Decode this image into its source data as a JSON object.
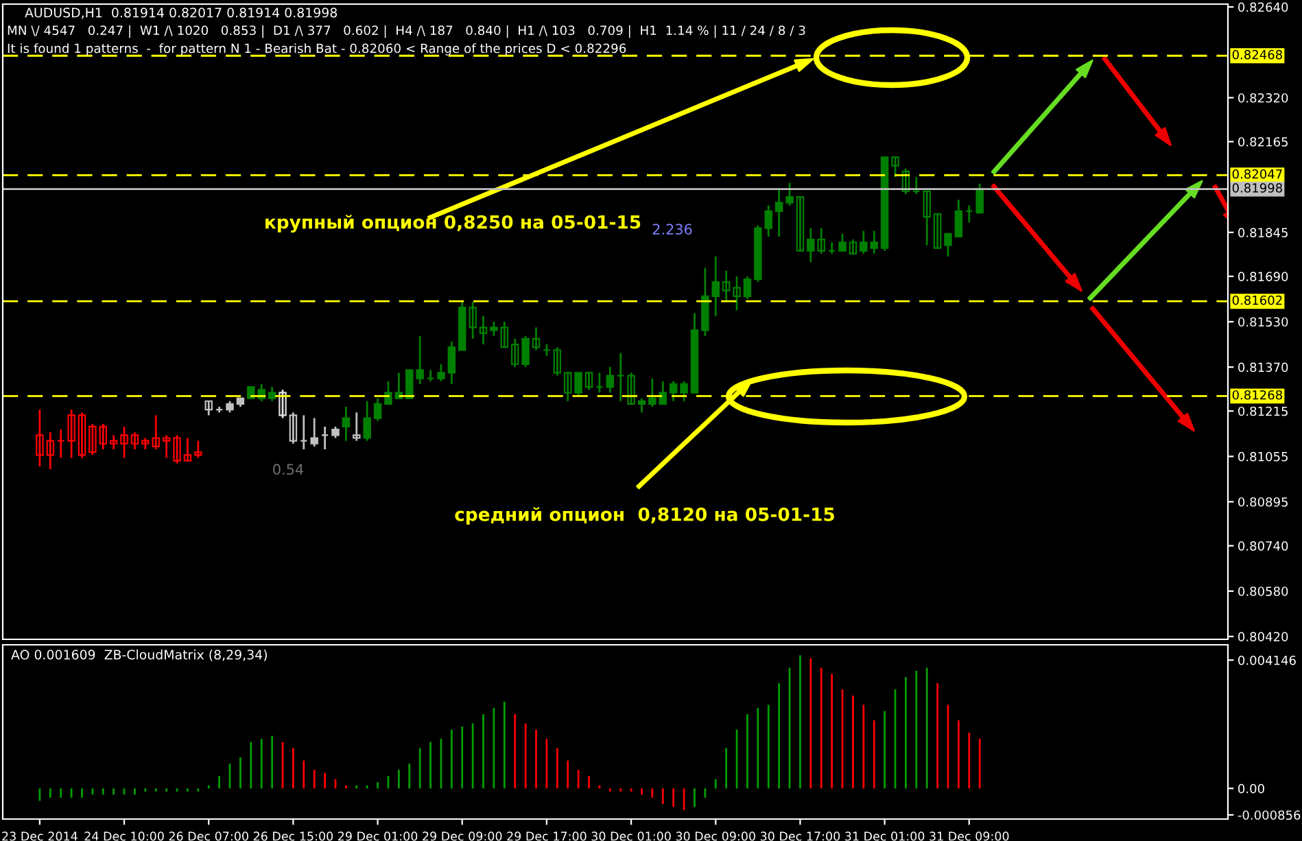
{
  "chart_data": [
    {
      "type": "candlestick",
      "title": "AUDUSD,H1  0.81914 0.82017 0.81914 0.81998",
      "subtitle": "MN \\/ 4547   0.247 |  W1 /\\ 1020   0.853 |  D1 /\\ 377   0.602 |  H4 /\\ 187   0.840 |  H1 /\\ 103   0.709 |  H1  1.14 % | 11 / 24 / 8 / 3",
      "annotations": [
        "It is found 1 patterns  -  for pattern N 1 - Bearish Bat - 0.82060 < Range of the prices D < 0.82296",
        "крупный опцион 0,8250 на 05-01-15",
        "средний опцион  0,8120 на 05-01-15",
        "2.236",
        "0.54"
      ],
      "categories": [
        null,
        null,
        null,
        null,
        null,
        null,
        null,
        null,
        null,
        null,
        null,
        null,
        null,
        null,
        null,
        null,
        null,
        null,
        null,
        null,
        null,
        null,
        null,
        null,
        null,
        null,
        null,
        null,
        null,
        null,
        null,
        null,
        null,
        null,
        null,
        null,
        null,
        null,
        null,
        null,
        null,
        null,
        null,
        null,
        null,
        null,
        null,
        null,
        null,
        null,
        null,
        null,
        null,
        null,
        null,
        null,
        null,
        null,
        null,
        null,
        null,
        null,
        null,
        null,
        null,
        null,
        null,
        null,
        null,
        null,
        null,
        null,
        null,
        null,
        null,
        null,
        null,
        null,
        null,
        null,
        null,
        null,
        null,
        null,
        null,
        null,
        null,
        null,
        null,
        null,
        null,
        null,
        null,
        null,
        null,
        null,
        null,
        null,
        null,
        null,
        null,
        null,
        null,
        null,
        null,
        null,
        null,
        null,
        null,
        null,
        null,
        null,
        null
      ],
      "ohlc": [
        [
          0.8113,
          0.8122,
          0.8102,
          0.8106
        ],
        [
          0.8111,
          0.8114,
          0.8101,
          0.8106
        ],
        [
          0.8111,
          0.8115,
          0.8105,
          0.8111
        ],
        [
          0.812,
          0.8122,
          0.8105,
          0.8111
        ],
        [
          0.812,
          0.8121,
          0.8105,
          0.8106
        ],
        [
          0.8116,
          0.8117,
          0.8106,
          0.8107
        ],
        [
          0.8116,
          0.8117,
          0.8108,
          0.811
        ],
        [
          0.8111,
          0.8113,
          0.8108,
          0.811
        ],
        [
          0.8113,
          0.8116,
          0.8105,
          0.811
        ],
        [
          0.8113,
          0.8114,
          0.8108,
          0.811
        ],
        [
          0.8111,
          0.8112,
          0.8108,
          0.811
        ],
        [
          0.8112,
          0.812,
          0.8108,
          0.8109
        ],
        [
          0.8112,
          0.8113,
          0.8105,
          0.8111
        ],
        [
          0.8112,
          0.8113,
          0.8103,
          0.8104
        ],
        [
          0.8106,
          0.8112,
          0.8104,
          0.8104
        ],
        [
          0.8107,
          0.8111,
          0.8105,
          0.8106
        ],
        [
          0.8125,
          0.8125,
          0.812,
          0.8122
        ],
        [
          0.8122,
          0.8123,
          0.8121,
          0.8122
        ],
        [
          0.8122,
          0.8125,
          0.8121,
          0.8124
        ],
        [
          0.8124,
          0.8126,
          0.8123,
          0.8126
        ],
        [
          0.8126,
          0.813,
          0.8126,
          0.813
        ],
        [
          0.8126,
          0.8131,
          0.8125,
          0.8129
        ],
        [
          0.8126,
          0.813,
          0.8125,
          0.8128
        ],
        [
          0.8128,
          0.8129,
          0.8119,
          0.812
        ],
        [
          0.812,
          0.8121,
          0.811,
          0.8111
        ],
        [
          0.8111,
          0.812,
          0.8108,
          0.8111
        ],
        [
          0.811,
          0.8119,
          0.8109,
          0.8112
        ],
        [
          0.8113,
          0.8116,
          0.8108,
          0.8113
        ],
        [
          0.8113,
          0.8116,
          0.8112,
          0.8115
        ],
        [
          0.8116,
          0.8123,
          0.8111,
          0.8119
        ],
        [
          0.8113,
          0.8121,
          0.8111,
          0.8112
        ],
        [
          0.8112,
          0.8125,
          0.8111,
          0.8119
        ],
        [
          0.8119,
          0.8126,
          0.8118,
          0.8124
        ],
        [
          0.8124,
          0.8132,
          0.8124,
          0.8128
        ],
        [
          0.8126,
          0.8135,
          0.8126,
          0.8128
        ],
        [
          0.8126,
          0.8136,
          0.8126,
          0.8136
        ],
        [
          0.8133,
          0.8148,
          0.8131,
          0.8136
        ],
        [
          0.8133,
          0.8136,
          0.8132,
          0.8133
        ],
        [
          0.8133,
          0.8138,
          0.8132,
          0.8135
        ],
        [
          0.8135,
          0.8146,
          0.8131,
          0.8144
        ],
        [
          0.8143,
          0.816,
          0.8143,
          0.8158
        ],
        [
          0.8158,
          0.816,
          0.8147,
          0.8151
        ],
        [
          0.8151,
          0.8155,
          0.8145,
          0.8149
        ],
        [
          0.815,
          0.8153,
          0.8148,
          0.8151
        ],
        [
          0.8151,
          0.8153,
          0.8144,
          0.8144
        ],
        [
          0.8145,
          0.8147,
          0.8137,
          0.8138
        ],
        [
          0.8138,
          0.8148,
          0.8137,
          0.8147
        ],
        [
          0.8147,
          0.8151,
          0.8143,
          0.8144
        ],
        [
          0.8143,
          0.8145,
          0.8141,
          0.8143
        ],
        [
          0.8143,
          0.8144,
          0.8134,
          0.8135
        ],
        [
          0.8135,
          0.8135,
          0.8125,
          0.8128
        ],
        [
          0.8128,
          0.8135,
          0.8127,
          0.8135
        ],
        [
          0.8135,
          0.8135,
          0.8129,
          0.813
        ],
        [
          0.813,
          0.8135,
          0.8128,
          0.813
        ],
        [
          0.813,
          0.8137,
          0.8128,
          0.8134
        ],
        [
          0.8134,
          0.8142,
          0.8125,
          0.8134
        ],
        [
          0.8134,
          0.8135,
          0.8124,
          0.8124
        ],
        [
          0.8124,
          0.8126,
          0.8121,
          0.8125
        ],
        [
          0.8124,
          0.8133,
          0.8123,
          0.8126
        ],
        [
          0.8124,
          0.8132,
          0.8124,
          0.8128
        ],
        [
          0.8128,
          0.8132,
          0.8125,
          0.8131
        ],
        [
          0.8128,
          0.8132,
          0.8125,
          0.8131
        ],
        [
          0.8128,
          0.8156,
          0.8128,
          0.815
        ],
        [
          0.815,
          0.8172,
          0.8148,
          0.8162
        ],
        [
          0.8162,
          0.8176,
          0.8155,
          0.8167
        ],
        [
          0.8167,
          0.8171,
          0.816,
          0.8164
        ],
        [
          0.8165,
          0.8169,
          0.8157,
          0.8162
        ],
        [
          0.8162,
          0.8169,
          0.8161,
          0.8168
        ],
        [
          0.8168,
          0.8187,
          0.8167,
          0.8186
        ],
        [
          0.8186,
          0.8194,
          0.8183,
          0.8192
        ],
        [
          0.8192,
          0.82,
          0.8183,
          0.8195
        ],
        [
          0.8195,
          0.8202,
          0.8194,
          0.8197
        ],
        [
          0.8197,
          0.8197,
          0.8178,
          0.8178
        ],
        [
          0.8178,
          0.8186,
          0.8174,
          0.8182
        ],
        [
          0.8182,
          0.8186,
          0.8177,
          0.8178
        ],
        [
          0.8178,
          0.8181,
          0.8177,
          0.8178
        ],
        [
          0.8178,
          0.8184,
          0.8178,
          0.8181
        ],
        [
          0.8181,
          0.8182,
          0.8177,
          0.8177
        ],
        [
          0.8178,
          0.8185,
          0.8177,
          0.8181
        ],
        [
          0.8179,
          0.8185,
          0.8177,
          0.8181
        ],
        [
          0.8179,
          0.8211,
          0.8178,
          0.8211
        ],
        [
          0.8211,
          0.8211,
          0.8204,
          0.8208
        ],
        [
          0.8206,
          0.8207,
          0.8198,
          0.8199
        ],
        [
          0.8199,
          0.8204,
          0.8198,
          0.8199
        ],
        [
          0.8199,
          0.8199,
          0.818,
          0.819
        ],
        [
          0.8191,
          0.8191,
          0.8179,
          0.8179
        ],
        [
          0.818,
          0.8184,
          0.8176,
          0.8184
        ],
        [
          0.8183,
          0.8196,
          0.8183,
          0.8192
        ],
        [
          0.8192,
          0.8194,
          0.8188,
          0.8192
        ],
        [
          0.81914,
          0.82017,
          0.81914,
          0.81998
        ],
        null,
        null,
        null,
        null,
        null,
        null,
        null,
        null,
        null,
        null,
        null,
        null,
        null,
        null,
        null,
        null,
        null,
        null,
        null,
        null,
        null,
        null,
        null
      ],
      "colors": [
        "#ff0000",
        "#ff0000",
        "#ff0000",
        "#ff0000",
        "#ff0000",
        "#ff0000",
        "#ff0000",
        "#ff0000",
        "#ff0000",
        "#ff0000",
        "#ff0000",
        "#ff0000",
        "#ff0000",
        "#ff0000",
        "#ff0000",
        "#ff0000",
        "#c0c0c0",
        "#c0c0c0",
        "#c0c0c0",
        "#c0c0c0",
        "#008000",
        "#008000",
        "#008000",
        "#e0e0e0",
        "#c0c0c0",
        "#c0c0c0",
        "#c0c0c0",
        "#c0c0c0",
        "#c0c0c0",
        "#008000",
        "#c0c0c0",
        "#008000",
        "#008000",
        "#008000",
        "#008000",
        "#008000",
        "#008000",
        "#008000",
        "#008000",
        "#008000",
        "#008000",
        "#008000",
        "#008000",
        "#008000",
        "#008000",
        "#008000",
        "#008000",
        "#008000",
        "#008000",
        "#008000",
        "#008000",
        "#008000",
        "#008000",
        "#008000",
        "#008000",
        "#008000",
        "#008000",
        "#008000",
        "#008000",
        "#008000",
        "#008000",
        "#008000",
        "#008000",
        "#008000",
        "#008000",
        "#008000",
        "#008000",
        "#008000",
        "#008000",
        "#008000",
        "#008000",
        "#008000",
        "#008000",
        "#008000",
        "#008000",
        "#008000",
        "#008000",
        "#008000",
        "#008000",
        "#008000",
        "#008000",
        "#008000",
        "#008000",
        "#008000",
        "#008000",
        "#008000",
        "#008000",
        "#008000",
        "#008000",
        "#008000",
        null,
        null,
        null,
        null,
        null,
        null,
        null,
        null,
        null,
        null,
        null,
        null,
        null,
        null,
        null,
        null,
        null,
        null,
        null,
        null,
        null,
        null,
        null
      ],
      "ylim": [
        0.8041,
        0.8265
      ],
      "yticks": [
        {
          "value": 0.8264,
          "label": "0.82640"
        },
        {
          "value": 0.8232,
          "label": "0.82320"
        },
        {
          "value": 0.82165,
          "label": "0.82165"
        },
        {
          "value": 0.81845,
          "label": "0.81845"
        },
        {
          "value": 0.8169,
          "label": "0.81690"
        },
        {
          "value": 0.8153,
          "label": "0.81530"
        },
        {
          "value": 0.8137,
          "label": "0.81370"
        },
        {
          "value": 0.81215,
          "label": "0.81215"
        },
        {
          "value": 0.81055,
          "label": "0.81055"
        },
        {
          "value": 0.80895,
          "label": "0.80895"
        },
        {
          "value": 0.8074,
          "label": "0.80740"
        },
        {
          "value": 0.8058,
          "label": "0.80580"
        },
        {
          "value": 0.8042,
          "label": "0.80420"
        }
      ],
      "ref_lines": [
        {
          "axis": "y",
          "value": 0.82468,
          "label": "0.82468",
          "color": "#ffff00",
          "line_style": "dashed"
        },
        {
          "axis": "y",
          "value": 0.82047,
          "label": "0.82047",
          "color": "#ffff00",
          "line_style": "dashed"
        },
        {
          "axis": "y",
          "value": 0.81998,
          "label": "0.81998",
          "color": "#c0c0c0",
          "line_style": "solid"
        },
        {
          "axis": "y",
          "value": 0.81602,
          "label": "0.81602",
          "color": "#ffff00",
          "line_style": "dashed"
        },
        {
          "axis": "y",
          "value": 0.81268,
          "label": "0.81268",
          "color": "#ffff00",
          "line_style": "dashed"
        }
      ],
      "tick_labels": "y"
    },
    {
      "type": "bar",
      "title": "AO 0.001609  ZB-CloudMatrix (8,29,34)",
      "categories": [
        "23 Dec 2014",
        null,
        null,
        null,
        null,
        null,
        null,
        null,
        "24 Dec 10:00",
        null,
        null,
        null,
        null,
        null,
        null,
        null,
        "26 Dec 07:00",
        null,
        null,
        null,
        null,
        null,
        null,
        null,
        "26 Dec 15:00",
        null,
        null,
        null,
        null,
        null,
        null,
        null,
        "29 Dec 01:00",
        null,
        null,
        null,
        null,
        null,
        null,
        null,
        "29 Dec 09:00",
        null,
        null,
        null,
        null,
        null,
        null,
        null,
        "29 Dec 17:00",
        null,
        null,
        null,
        null,
        null,
        null,
        null,
        "30 Dec 01:00",
        null,
        null,
        null,
        null,
        null,
        null,
        null,
        "30 Dec 09:00",
        null,
        null,
        null,
        null,
        null,
        null,
        null,
        "30 Dec 17:00",
        null,
        null,
        null,
        null,
        null,
        null,
        null,
        "31 Dec 01:00",
        null,
        null,
        null,
        null,
        null,
        null,
        null,
        "31 Dec 09:00",
        null,
        null,
        null,
        null,
        null,
        null,
        null,
        null,
        null,
        null,
        null,
        null,
        null,
        null,
        null,
        null,
        null,
        null,
        null,
        null,
        null,
        null,
        null,
        null
      ],
      "values": [
        -0.0004,
        -0.0003,
        -0.0003,
        -0.0003,
        -0.0003,
        -0.0002,
        -0.0002,
        -0.0002,
        -0.0002,
        -0.0002,
        -0.0001,
        -0.0001,
        -0.0001,
        -0.0001,
        -0.0001,
        -0.0001,
        0.0001,
        0.0004,
        0.0008,
        0.001,
        0.0015,
        0.0016,
        0.0017,
        0.0015,
        0.0013,
        0.0009,
        0.0006,
        0.0005,
        0.0003,
        0.0001,
        0.0001,
        0.0001,
        0.0002,
        0.0004,
        0.0006,
        0.0008,
        0.0013,
        0.0015,
        0.0016,
        0.0019,
        0.002,
        0.0021,
        0.0024,
        0.0026,
        0.0028,
        0.0024,
        0.0021,
        0.0019,
        0.0016,
        0.0013,
        0.0009,
        0.0006,
        0.0004,
        0.0001,
        -0.0001,
        -0.0001,
        -0.0001,
        -0.0002,
        -0.0003,
        -0.0005,
        -0.0006,
        -0.0007,
        -0.0006,
        -0.0003,
        0.0003,
        0.0013,
        0.0019,
        0.0024,
        0.0026,
        0.0027,
        0.0034,
        0.0039,
        0.0043,
        0.0042,
        0.0039,
        0.0037,
        0.0032,
        0.003,
        0.0027,
        0.0022,
        0.0025,
        0.0032,
        0.0036,
        0.0038,
        0.0039,
        0.0034,
        0.0027,
        0.0022,
        0.0018,
        0.001609,
        null,
        null,
        null,
        null,
        null,
        null,
        null,
        null,
        null,
        null,
        null,
        null,
        null,
        null,
        null,
        null,
        null,
        null,
        null,
        null,
        null,
        null,
        null
      ],
      "colors": [
        "#00a000",
        "#00a000",
        "#00a000",
        "#00a000",
        "#00a000",
        "#00a000",
        "#00a000",
        "#00a000",
        "#00a000",
        "#00a000",
        "#00a000",
        "#00a000",
        "#00a000",
        "#00a000",
        "#00a000",
        "#00a000",
        "#00a000",
        "#00a000",
        "#00a000",
        "#00a000",
        "#00a000",
        "#00a000",
        "#00a000",
        "#ff0000",
        "#ff0000",
        "#ff0000",
        "#ff0000",
        "#ff0000",
        "#ff0000",
        "#ff0000",
        "#00a000",
        "#00a000",
        "#00a000",
        "#00a000",
        "#00a000",
        "#00a000",
        "#00a000",
        "#00a000",
        "#00a000",
        "#00a000",
        "#00a000",
        "#00a000",
        "#00a000",
        "#00a000",
        "#00a000",
        "#ff0000",
        "#ff0000",
        "#ff0000",
        "#ff0000",
        "#ff0000",
        "#ff0000",
        "#ff0000",
        "#ff0000",
        "#ff0000",
        "#ff0000",
        "#ff0000",
        "#ff0000",
        "#ff0000",
        "#ff0000",
        "#ff0000",
        "#ff0000",
        "#ff0000",
        "#00a000",
        "#00a000",
        "#00a000",
        "#00a000",
        "#00a000",
        "#00a000",
        "#00a000",
        "#00a000",
        "#00a000",
        "#00a000",
        "#00a000",
        "#ff0000",
        "#ff0000",
        "#ff0000",
        "#ff0000",
        "#ff0000",
        "#ff0000",
        "#ff0000",
        "#00a000",
        "#00a000",
        "#00a000",
        "#00a000",
        "#00a000",
        "#ff0000",
        "#ff0000",
        "#ff0000",
        "#ff0000",
        "#ff0000",
        null,
        null,
        null,
        null,
        null,
        null,
        null,
        null,
        null,
        null,
        null,
        null,
        null,
        null,
        null,
        null,
        null,
        null,
        null,
        null,
        null,
        null,
        null
      ],
      "ylim": [
        -0.00099,
        0.00464
      ],
      "yticks": [
        {
          "value": 0.004146,
          "label": "0.004146"
        },
        {
          "value": 0,
          "label": "0.00"
        },
        {
          "value": -0.000856,
          "label": "-0.000856"
        }
      ]
    }
  ]
}
